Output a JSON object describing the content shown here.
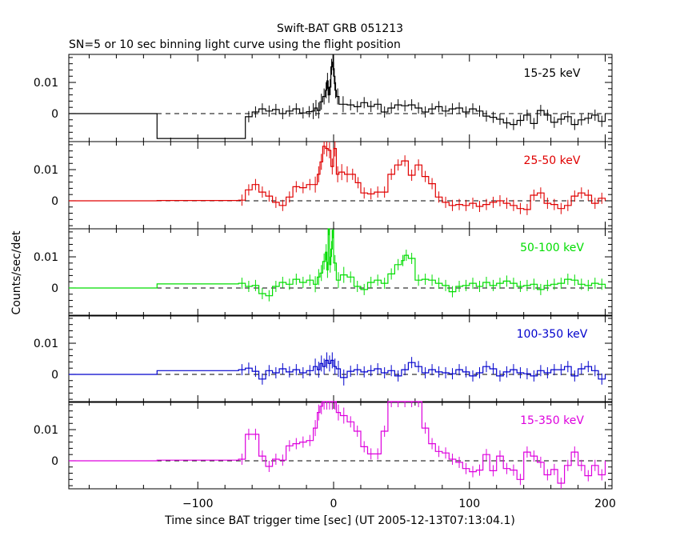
{
  "title": "Swift-BAT GRB 051213",
  "subtitle": "SN=5 or 10 sec binning light curve using the flight position",
  "ylabel": "Counts/sec/det",
  "xlabel": "Time since BAT trigger time [sec] (UT 2005-12-13T07:13:04.1)",
  "chart_data": [
    {
      "type": "line",
      "name": "15-25 keV",
      "color": "#000000",
      "xlim": [
        -195,
        205
      ],
      "ylim": [
        -0.009,
        0.019
      ],
      "yticks": [
        0,
        0.01
      ],
      "ytick_labels": [
        "0",
        "0.01"
      ],
      "steps": [
        [
          -195,
          0
        ],
        [
          -130,
          -0.008
        ],
        [
          -65,
          -0.001
        ],
        [
          -60,
          0.0005
        ],
        [
          -55,
          0.0015
        ],
        [
          -50,
          0.0008
        ],
        [
          -45,
          0.0013
        ],
        [
          -40,
          0.0
        ],
        [
          -35,
          0.0008
        ],
        [
          -30,
          0.0015
        ],
        [
          -25,
          0.0002
        ],
        [
          -20,
          0.0006
        ],
        [
          -16,
          0.0008
        ],
        [
          -14,
          0.0018
        ],
        [
          -12,
          0.001
        ],
        [
          -10,
          0.0038
        ],
        [
          -8,
          0.0055
        ],
        [
          -6,
          0.0075
        ],
        [
          -5,
          0.0105
        ],
        [
          -4,
          0.006
        ],
        [
          -3,
          0.0085
        ],
        [
          -2,
          0.015
        ],
        [
          -1,
          0.0165
        ],
        [
          0,
          0.012
        ],
        [
          1,
          0.0075
        ],
        [
          2,
          0.0055
        ],
        [
          4,
          0.003
        ],
        [
          10,
          0.0028
        ],
        [
          15,
          0.0022
        ],
        [
          20,
          0.0035
        ],
        [
          25,
          0.0023
        ],
        [
          30,
          0.003
        ],
        [
          35,
          0.0005
        ],
        [
          40,
          0.0018
        ],
        [
          45,
          0.0028
        ],
        [
          50,
          0.0025
        ],
        [
          55,
          0.0028
        ],
        [
          60,
          0.0018
        ],
        [
          65,
          0.0005
        ],
        [
          70,
          0.0015
        ],
        [
          75,
          0.0022
        ],
        [
          80,
          0.0008
        ],
        [
          85,
          0.0015
        ],
        [
          90,
          0.0018
        ],
        [
          95,
          0.0005
        ],
        [
          100,
          0.0015
        ],
        [
          105,
          0.0008
        ],
        [
          110,
          -0.0008
        ],
        [
          115,
          -0.0012
        ],
        [
          120,
          -0.0018
        ],
        [
          125,
          -0.003
        ],
        [
          130,
          -0.0035
        ],
        [
          135,
          -0.0022
        ],
        [
          140,
          -0.0005
        ],
        [
          145,
          -0.0032
        ],
        [
          150,
          0.001
        ],
        [
          155,
          -0.0005
        ],
        [
          160,
          -0.0028
        ],
        [
          165,
          -0.0018
        ],
        [
          170,
          -0.001
        ],
        [
          175,
          -0.0035
        ],
        [
          180,
          -0.002
        ],
        [
          185,
          -0.0015
        ],
        [
          190,
          -0.0005
        ],
        [
          195,
          -0.0025
        ],
        [
          200,
          0.0
        ]
      ],
      "label_y": 0.0118
    },
    {
      "type": "line",
      "name": "25-50 keV",
      "color": "#e00000",
      "xlim": [
        -195,
        205
      ],
      "ylim": [
        -0.009,
        0.019
      ],
      "yticks": [
        0,
        0.01
      ],
      "ytick_labels": [
        "0",
        "0.01"
      ],
      "steps": [
        [
          -195,
          0
        ],
        [
          -130,
          0.0001
        ],
        [
          -70,
          0.0002
        ],
        [
          -65,
          0.0035
        ],
        [
          -60,
          0.0052
        ],
        [
          -55,
          0.0028
        ],
        [
          -50,
          0.0015
        ],
        [
          -45,
          -0.0005
        ],
        [
          -40,
          -0.0015
        ],
        [
          -35,
          0.0012
        ],
        [
          -30,
          0.0045
        ],
        [
          -25,
          0.0042
        ],
        [
          -20,
          0.0052
        ],
        [
          -15,
          0.0052
        ],
        [
          -12,
          0.0085
        ],
        [
          -10,
          0.0125
        ],
        [
          -8,
          0.0175
        ],
        [
          -6,
          0.0168
        ],
        [
          -4,
          0.0162
        ],
        [
          -2,
          0.011
        ],
        [
          0,
          0.0168
        ],
        [
          2,
          0.0085
        ],
        [
          4,
          0.0092
        ],
        [
          8,
          0.0085
        ],
        [
          12,
          0.0085
        ],
        [
          16,
          0.0058
        ],
        [
          20,
          0.0025
        ],
        [
          25,
          0.0022
        ],
        [
          30,
          0.0028
        ],
        [
          35,
          0.0028
        ],
        [
          40,
          0.0085
        ],
        [
          45,
          0.0115
        ],
        [
          50,
          0.0128
        ],
        [
          55,
          0.0082
        ],
        [
          60,
          0.0115
        ],
        [
          65,
          0.0078
        ],
        [
          70,
          0.0055
        ],
        [
          75,
          0.0012
        ],
        [
          80,
          -0.0005
        ],
        [
          85,
          -0.0015
        ],
        [
          90,
          -0.0012
        ],
        [
          95,
          -0.0015
        ],
        [
          100,
          -0.0008
        ],
        [
          105,
          -0.0018
        ],
        [
          110,
          -0.0012
        ],
        [
          115,
          -0.0005
        ],
        [
          120,
          0.0
        ],
        [
          125,
          -0.0008
        ],
        [
          130,
          -0.0015
        ],
        [
          135,
          -0.0025
        ],
        [
          140,
          -0.0028
        ],
        [
          145,
          0.0018
        ],
        [
          150,
          0.0025
        ],
        [
          155,
          -0.0008
        ],
        [
          160,
          -0.0012
        ],
        [
          165,
          -0.0025
        ],
        [
          170,
          -0.0015
        ],
        [
          175,
          0.0015
        ],
        [
          180,
          0.0025
        ],
        [
          185,
          0.0018
        ],
        [
          190,
          -0.0008
        ],
        [
          195,
          0.0008
        ],
        [
          200,
          0.0
        ]
      ],
      "label_y": 0.0118
    },
    {
      "type": "line",
      "name": "50-100 keV",
      "color": "#00dd00",
      "xlim": [
        -195,
        205
      ],
      "ylim": [
        -0.009,
        0.019
      ],
      "yticks": [
        0,
        0.01
      ],
      "ytick_labels": [
        "0",
        "0.01"
      ],
      "steps": [
        [
          -195,
          0
        ],
        [
          -130,
          0.0013
        ],
        [
          -70,
          0.0015
        ],
        [
          -65,
          0.0005
        ],
        [
          -60,
          0.0008
        ],
        [
          -55,
          -0.0018
        ],
        [
          -50,
          -0.0025
        ],
        [
          -45,
          0.0005
        ],
        [
          -40,
          0.0018
        ],
        [
          -35,
          0.0012
        ],
        [
          -30,
          0.0028
        ],
        [
          -25,
          0.0018
        ],
        [
          -20,
          0.0025
        ],
        [
          -15,
          0.0012
        ],
        [
          -12,
          0.0035
        ],
        [
          -10,
          0.0048
        ],
        [
          -8,
          0.0085
        ],
        [
          -6,
          0.0115
        ],
        [
          -5,
          0.0058
        ],
        [
          -4,
          0.0195
        ],
        [
          -3,
          0.0075
        ],
        [
          -2,
          0.0125
        ],
        [
          -1,
          0.0185
        ],
        [
          0,
          0.008
        ],
        [
          2,
          0.0025
        ],
        [
          5,
          0.0042
        ],
        [
          10,
          0.0035
        ],
        [
          15,
          0.0005
        ],
        [
          20,
          -0.0005
        ],
        [
          25,
          0.0018
        ],
        [
          30,
          0.0025
        ],
        [
          35,
          0.0015
        ],
        [
          40,
          0.0045
        ],
        [
          45,
          0.0075
        ],
        [
          50,
          0.0088
        ],
        [
          52,
          0.0105
        ],
        [
          55,
          0.0095
        ],
        [
          60,
          0.0025
        ],
        [
          65,
          0.0028
        ],
        [
          70,
          0.0025
        ],
        [
          75,
          0.0015
        ],
        [
          80,
          0.0008
        ],
        [
          85,
          -0.0012
        ],
        [
          90,
          0.0005
        ],
        [
          95,
          0.0008
        ],
        [
          100,
          0.0015
        ],
        [
          105,
          0.0005
        ],
        [
          110,
          0.0018
        ],
        [
          115,
          0.0008
        ],
        [
          120,
          0.0015
        ],
        [
          125,
          0.0022
        ],
        [
          130,
          0.0015
        ],
        [
          135,
          0.0005
        ],
        [
          140,
          0.0008
        ],
        [
          145,
          0.0012
        ],
        [
          150,
          -0.0005
        ],
        [
          155,
          0.0008
        ],
        [
          160,
          0.0012
        ],
        [
          165,
          0.0015
        ],
        [
          170,
          0.0028
        ],
        [
          175,
          0.0025
        ],
        [
          180,
          0.0012
        ],
        [
          185,
          0.0008
        ],
        [
          190,
          0.0015
        ],
        [
          195,
          0.0012
        ],
        [
          200,
          0.0
        ]
      ],
      "label_y": 0.0118
    },
    {
      "type": "line",
      "name": "100-350 keV",
      "color": "#0000cc",
      "xlim": [
        -195,
        205
      ],
      "ylim": [
        -0.009,
        0.019
      ],
      "yticks": [
        0,
        0.01
      ],
      "ytick_labels": [
        "0",
        "0.01"
      ],
      "steps": [
        [
          -195,
          0
        ],
        [
          -130,
          0.0012
        ],
        [
          -70,
          0.0015
        ],
        [
          -65,
          0.002
        ],
        [
          -60,
          0.001
        ],
        [
          -55,
          -0.0015
        ],
        [
          -50,
          0.0012
        ],
        [
          -45,
          0.0005
        ],
        [
          -40,
          0.0018
        ],
        [
          -35,
          0.0008
        ],
        [
          -30,
          0.0015
        ],
        [
          -25,
          0.0005
        ],
        [
          -20,
          0.0012
        ],
        [
          -15,
          0.0025
        ],
        [
          -12,
          0.0015
        ],
        [
          -10,
          0.0035
        ],
        [
          -8,
          0.0025
        ],
        [
          -6,
          0.0045
        ],
        [
          -4,
          0.0035
        ],
        [
          -2,
          0.0045
        ],
        [
          0,
          0.0025
        ],
        [
          2,
          0.0018
        ],
        [
          5,
          -0.001
        ],
        [
          10,
          0.001
        ],
        [
          15,
          0.0015
        ],
        [
          20,
          0.0008
        ],
        [
          25,
          0.0012
        ],
        [
          30,
          0.0018
        ],
        [
          35,
          0.0005
        ],
        [
          40,
          0.0012
        ],
        [
          45,
          -0.0005
        ],
        [
          50,
          0.0015
        ],
        [
          55,
          0.0038
        ],
        [
          60,
          0.0025
        ],
        [
          65,
          0.0005
        ],
        [
          70,
          0.0015
        ],
        [
          75,
          0.0008
        ],
        [
          80,
          0.0005
        ],
        [
          85,
          0.0002
        ],
        [
          90,
          0.0015
        ],
        [
          95,
          0.0008
        ],
        [
          100,
          -0.0005
        ],
        [
          105,
          0.0005
        ],
        [
          110,
          0.0025
        ],
        [
          115,
          0.0018
        ],
        [
          120,
          -0.0005
        ],
        [
          125,
          0.0008
        ],
        [
          130,
          0.0015
        ],
        [
          135,
          0.0005
        ],
        [
          140,
          0.0002
        ],
        [
          145,
          -0.0005
        ],
        [
          150,
          0.0012
        ],
        [
          155,
          0.0005
        ],
        [
          160,
          0.0015
        ],
        [
          165,
          0.0015
        ],
        [
          170,
          0.0025
        ],
        [
          175,
          -0.0005
        ],
        [
          180,
          0.0018
        ],
        [
          185,
          0.0025
        ],
        [
          190,
          0.0012
        ],
        [
          195,
          -0.0015
        ],
        [
          200,
          0.0
        ]
      ],
      "label_y": 0.0118
    },
    {
      "type": "line",
      "name": "15-350 keV",
      "color": "#dd00dd",
      "xlim": [
        -195,
        205
      ],
      "ylim": [
        -0.009,
        0.019
      ],
      "yticks": [
        0,
        0.01
      ],
      "ytick_labels": [
        "0",
        "0.01"
      ],
      "steps": [
        [
          -195,
          0
        ],
        [
          -130,
          0.0002
        ],
        [
          -70,
          0.0005
        ],
        [
          -65,
          0.0085
        ],
        [
          -60,
          0.0085
        ],
        [
          -55,
          0.0015
        ],
        [
          -50,
          -0.0018
        ],
        [
          -45,
          0.0005
        ],
        [
          -40,
          0.0002
        ],
        [
          -35,
          0.0048
        ],
        [
          -30,
          0.0055
        ],
        [
          -25,
          0.006
        ],
        [
          -20,
          0.0065
        ],
        [
          -15,
          0.0105
        ],
        [
          -12,
          0.0155
        ],
        [
          -10,
          0.0175
        ],
        [
          -8,
          0.019
        ],
        [
          -6,
          0.019
        ],
        [
          -4,
          0.019
        ],
        [
          -2,
          0.019
        ],
        [
          0,
          0.019
        ],
        [
          2,
          0.0155
        ],
        [
          5,
          0.0145
        ],
        [
          10,
          0.0125
        ],
        [
          15,
          0.0095
        ],
        [
          20,
          0.0045
        ],
        [
          25,
          0.0022
        ],
        [
          30,
          0.0022
        ],
        [
          35,
          0.0095
        ],
        [
          40,
          0.019
        ],
        [
          45,
          0.019
        ],
        [
          50,
          0.019
        ],
        [
          55,
          0.019
        ],
        [
          60,
          0.019
        ],
        [
          65,
          0.0105
        ],
        [
          70,
          0.0055
        ],
        [
          75,
          0.003
        ],
        [
          80,
          0.0025
        ],
        [
          85,
          0.0005
        ],
        [
          90,
          -0.0005
        ],
        [
          95,
          -0.0025
        ],
        [
          100,
          -0.0035
        ],
        [
          105,
          -0.003
        ],
        [
          110,
          0.002
        ],
        [
          115,
          -0.0032
        ],
        [
          120,
          0.0015
        ],
        [
          125,
          -0.0025
        ],
        [
          130,
          -0.003
        ],
        [
          135,
          -0.006
        ],
        [
          140,
          0.0028
        ],
        [
          145,
          0.0015
        ],
        [
          150,
          -0.0005
        ],
        [
          155,
          -0.0045
        ],
        [
          160,
          -0.0028
        ],
        [
          165,
          -0.0072
        ],
        [
          170,
          -0.0015
        ],
        [
          175,
          0.0028
        ],
        [
          180,
          -0.0015
        ],
        [
          185,
          -0.0048
        ],
        [
          190,
          -0.0015
        ],
        [
          195,
          -0.0045
        ],
        [
          200,
          0.0
        ]
      ],
      "label_y": 0.0118
    }
  ],
  "xaxis": {
    "ticks": [
      -100,
      0,
      100,
      200
    ],
    "tick_labels": [
      "−100",
      "0",
      "100",
      "200"
    ],
    "minor_step": 20,
    "major_step": 100
  }
}
